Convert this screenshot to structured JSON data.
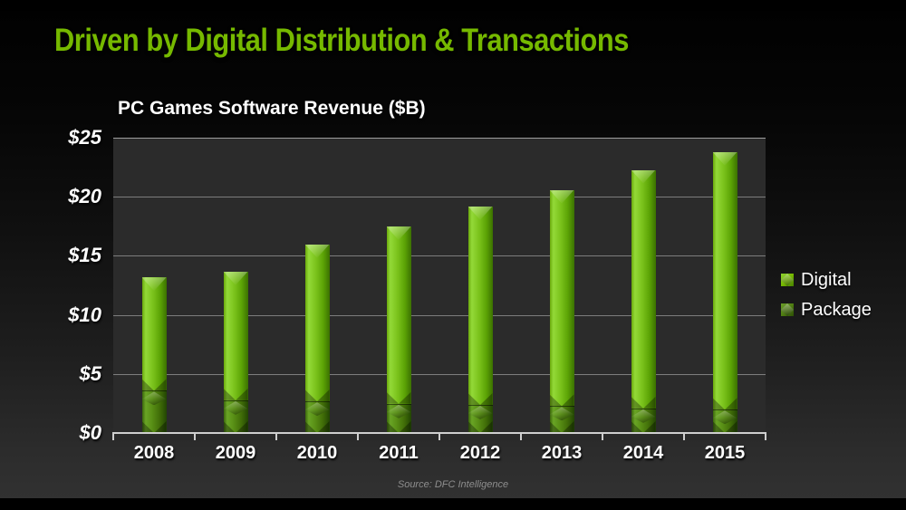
{
  "slide": {
    "title": "Driven by Digital Distribution & Transactions",
    "source": "Source: DFC Intelligence"
  },
  "chart_data": {
    "type": "bar",
    "stacked": true,
    "title": "PC Games Software Revenue ($B)",
    "categories": [
      "2008",
      "2009",
      "2010",
      "2011",
      "2012",
      "2013",
      "2014",
      "2015"
    ],
    "series": [
      {
        "name": "Digital",
        "color": "#76b900",
        "values": [
          9.6,
          10.9,
          13.3,
          15.0,
          16.8,
          18.3,
          20.2,
          21.8
        ]
      },
      {
        "name": "Package",
        "color": "#4e7d10",
        "values": [
          3.5,
          2.7,
          2.6,
          2.4,
          2.3,
          2.2,
          2.0,
          1.9
        ]
      }
    ],
    "xlabel": "",
    "ylabel": "",
    "ylim": [
      0,
      25
    ],
    "ytick_step": 5,
    "ytick_labels": [
      "$0",
      "$5",
      "$10",
      "$15",
      "$20",
      "$25"
    ],
    "grid": true,
    "legend_position": "right"
  },
  "colors": {
    "accent_green": "#76b900",
    "plot_background": "#2b2b2b",
    "slide_background_top": "#000000",
    "slide_background_bottom": "#313131",
    "grid_line": "#7d7d7d",
    "axis_line": "#cfcfcf",
    "label_text": "#ffffff",
    "source_text": "#8e8e8e"
  }
}
